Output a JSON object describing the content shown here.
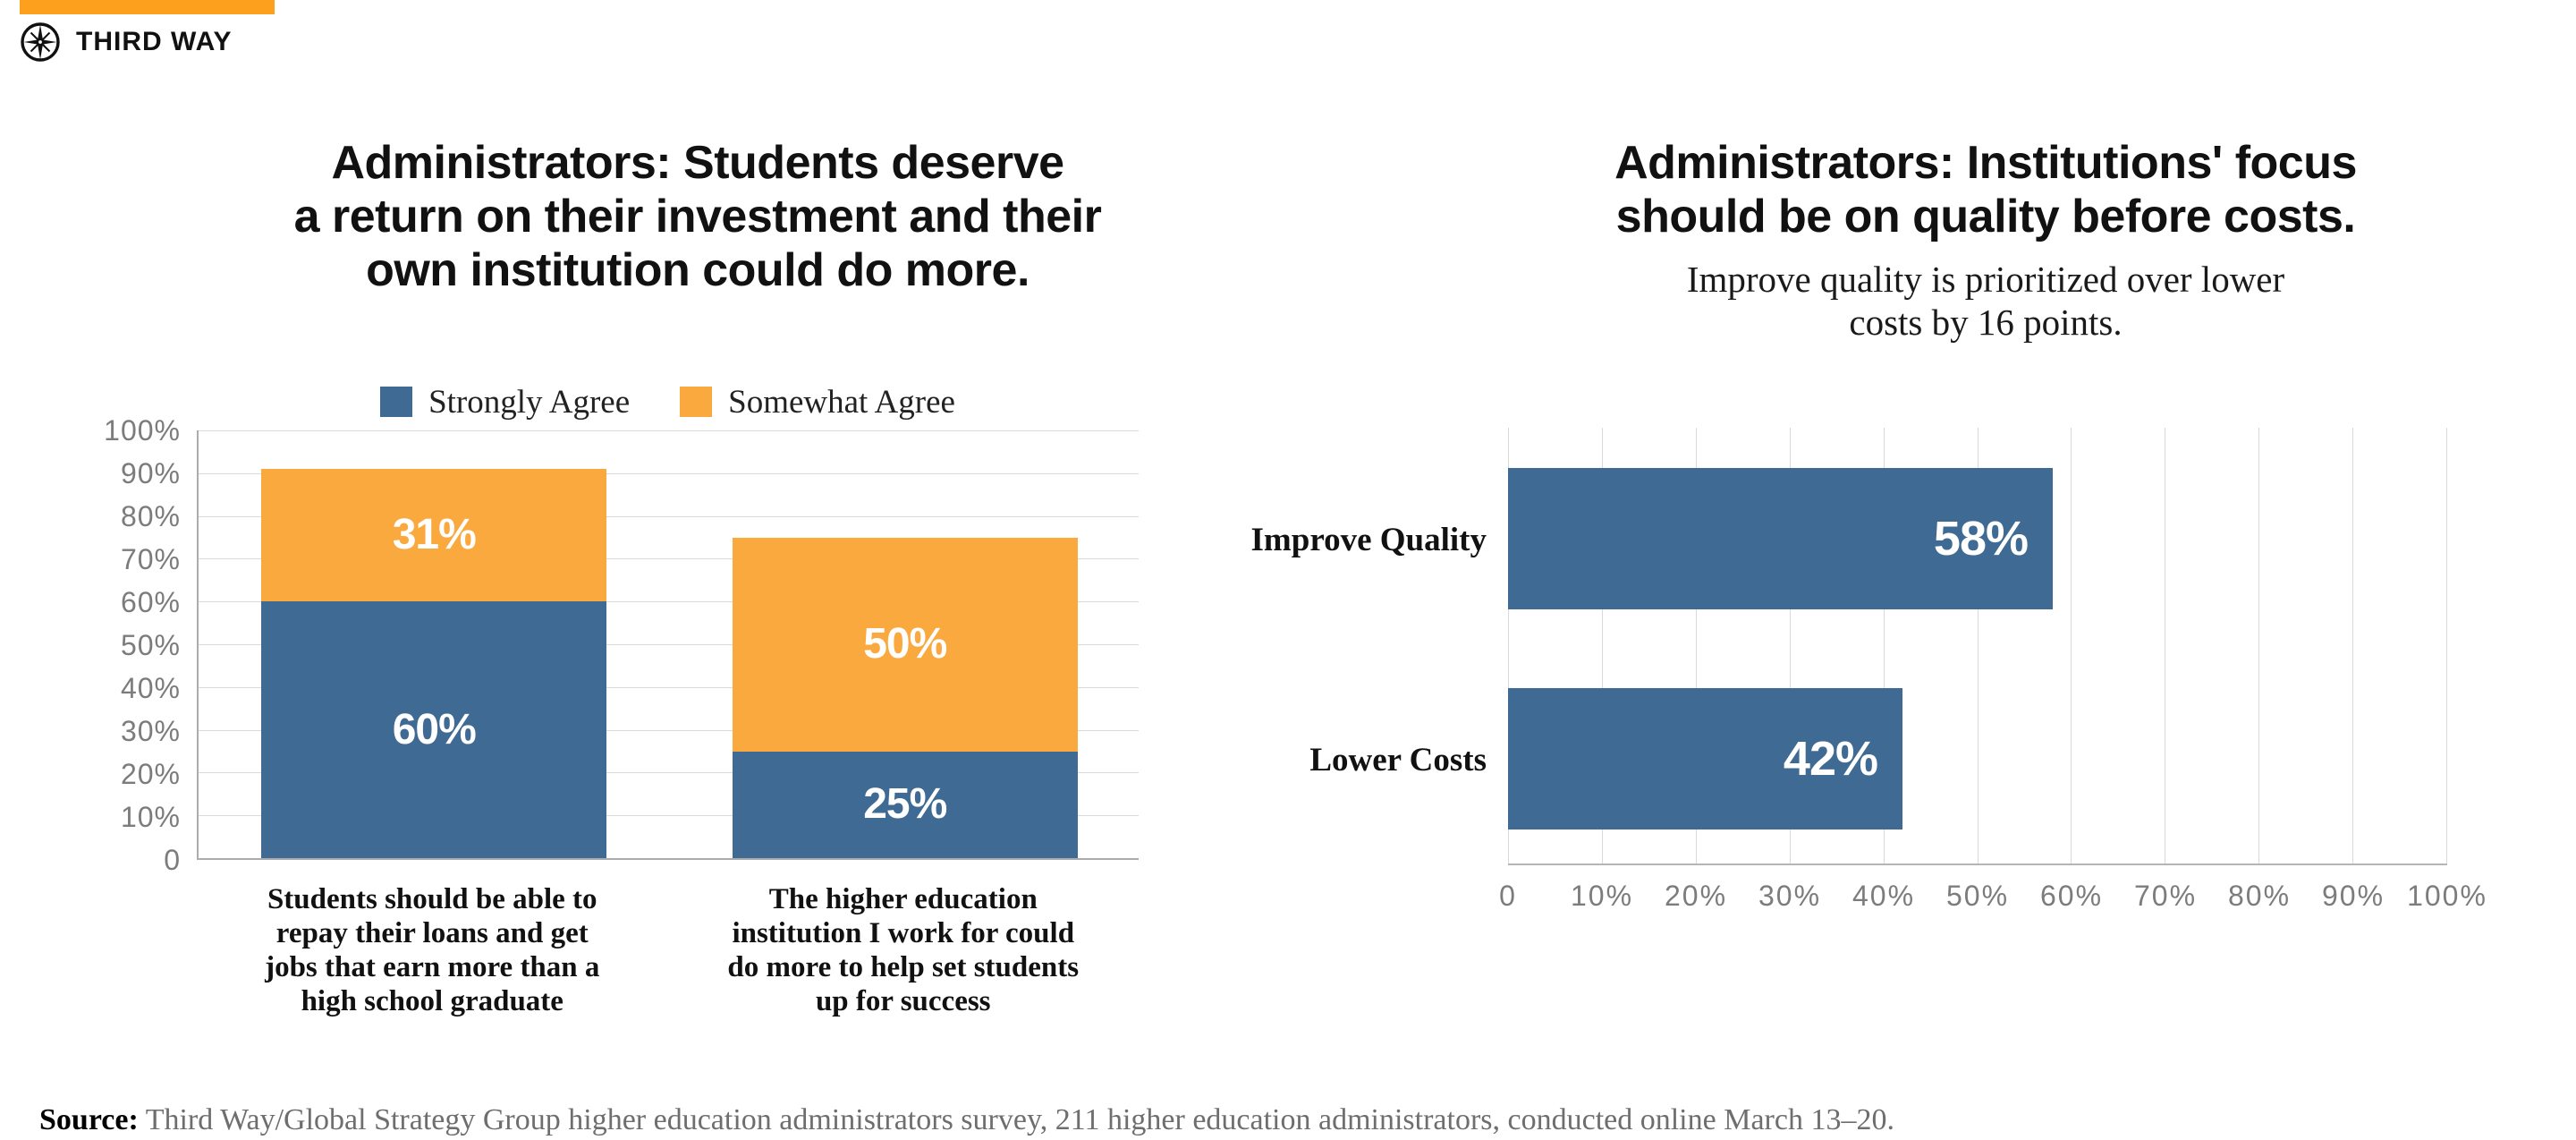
{
  "brand": {
    "logo_text": "THIRD WAY",
    "logo_icon": "compass-star-icon",
    "top_bar_color": "#FDA01E"
  },
  "colors": {
    "blue": "#3E6A93",
    "orange": "#FAA93E",
    "gridline": "#D9D9D9",
    "axis": "#ACACAC",
    "tick_text": "#7C7C7C",
    "white_label": "#FFFFFF"
  },
  "chart_data": [
    {
      "type": "bar",
      "subtype": "stacked-vertical",
      "title": "Administrators: Students deserve a return on their investment and their own institution could do more.",
      "title_lines": [
        "Administrators: Students deserve",
        "a return on their investment and their",
        "own institution could do more."
      ],
      "categories": [
        "Students should be able to repay their loans and get jobs that earn more than a high school graduate",
        "The higher education institution I work for could do more to help set students up for success"
      ],
      "category_lines": [
        [
          "Students should be able to",
          "repay their loans and get",
          "jobs that earn more than a",
          "high school graduate"
        ],
        [
          "The higher education",
          "institution I work for could",
          "do more to help set students",
          "up for success"
        ]
      ],
      "series": [
        {
          "name": "Strongly Agree",
          "color": "#3E6A93",
          "values": [
            60,
            25
          ],
          "value_labels": [
            "60%",
            "25%"
          ]
        },
        {
          "name": "Somewhat Agree",
          "color": "#FAA93E",
          "values": [
            31,
            50
          ],
          "value_labels": [
            "31%",
            "50%"
          ]
        }
      ],
      "ylim": [
        0,
        100
      ],
      "yticks": [
        "100%",
        "90%",
        "80%",
        "70%",
        "60%",
        "50%",
        "40%",
        "30%",
        "20%",
        "10%",
        "0"
      ],
      "legend_position": "top",
      "grid": "horizontal"
    },
    {
      "type": "bar",
      "subtype": "horizontal",
      "title": "Administrators: Institutions' focus should be on quality before costs.",
      "title_lines": [
        "Administrators: Institutions' focus",
        "should be on quality before costs."
      ],
      "subtitle": "Improve quality is prioritized over lower costs by 16 points.",
      "subtitle_lines": [
        "Improve quality is prioritized over lower",
        "costs by 16 points."
      ],
      "categories": [
        "Improve Quality",
        "Lower Costs"
      ],
      "values": [
        58,
        42
      ],
      "value_labels": [
        "58%",
        "42%"
      ],
      "bar_color": "#3E6A93",
      "xlim": [
        0,
        100
      ],
      "xticks": [
        "0",
        "10%",
        "20%",
        "30%",
        "40%",
        "50%",
        "60%",
        "70%",
        "80%",
        "90%",
        "100%"
      ],
      "grid": "vertical",
      "legend_position": "none"
    }
  ],
  "source": {
    "label": "Source:",
    "text": "Third Way/Global Strategy Group higher education administrators survey, 211 higher education administrators, conducted online March 13–20."
  }
}
